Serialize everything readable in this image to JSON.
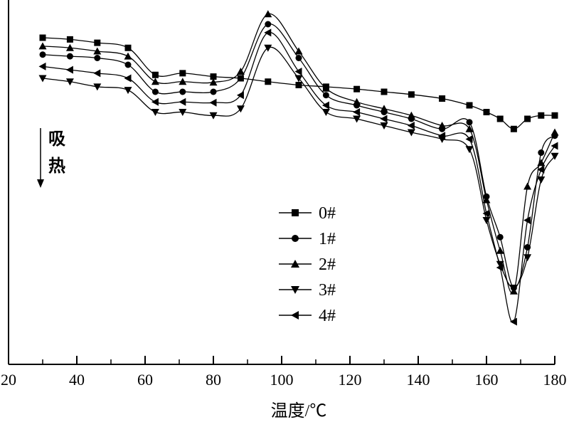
{
  "chart_data": {
    "type": "line",
    "title": "",
    "xlabel": "温度/℃",
    "ylabel": "",
    "annotation": [
      "吸",
      "热"
    ],
    "xlim": [
      20,
      180
    ],
    "x_ticks": [
      20,
      40,
      60,
      80,
      100,
      120,
      140,
      160,
      180
    ],
    "ylim": [
      -1.0,
      0.0
    ],
    "y_axis_ticks": false,
    "grid": false,
    "legend_position": "center",
    "series": [
      {
        "name": "0#",
        "marker": "square",
        "points": [
          [
            30,
            -0.08
          ],
          [
            38,
            -0.085
          ],
          [
            46,
            -0.095
          ],
          [
            55,
            -0.11
          ],
          [
            63,
            -0.19
          ],
          [
            71,
            -0.185
          ],
          [
            80,
            -0.195
          ],
          [
            88,
            -0.2
          ],
          [
            96,
            -0.21
          ],
          [
            105,
            -0.22
          ],
          [
            113,
            -0.225
          ],
          [
            122,
            -0.232
          ],
          [
            130,
            -0.24
          ],
          [
            138,
            -0.248
          ],
          [
            147,
            -0.26
          ],
          [
            155,
            -0.28
          ],
          [
            160,
            -0.3
          ],
          [
            164,
            -0.32
          ],
          [
            168,
            -0.35
          ],
          [
            172,
            -0.32
          ],
          [
            176,
            -0.31
          ],
          [
            180,
            -0.31
          ]
        ]
      },
      {
        "name": "1#",
        "marker": "circle",
        "points": [
          [
            30,
            -0.13
          ],
          [
            38,
            -0.135
          ],
          [
            46,
            -0.14
          ],
          [
            55,
            -0.16
          ],
          [
            63,
            -0.24
          ],
          [
            71,
            -0.24
          ],
          [
            80,
            -0.24
          ],
          [
            88,
            -0.2
          ],
          [
            96,
            -0.04
          ],
          [
            105,
            -0.14
          ],
          [
            113,
            -0.25
          ],
          [
            122,
            -0.28
          ],
          [
            130,
            -0.3
          ],
          [
            138,
            -0.32
          ],
          [
            147,
            -0.35
          ],
          [
            155,
            -0.33
          ],
          [
            160,
            -0.55
          ],
          [
            164,
            -0.67
          ],
          [
            168,
            -0.82
          ],
          [
            172,
            -0.7
          ],
          [
            176,
            -0.42
          ],
          [
            180,
            -0.37
          ]
        ]
      },
      {
        "name": "2#",
        "marker": "triangle-up",
        "points": [
          [
            30,
            -0.105
          ],
          [
            38,
            -0.11
          ],
          [
            46,
            -0.12
          ],
          [
            55,
            -0.135
          ],
          [
            63,
            -0.21
          ],
          [
            71,
            -0.21
          ],
          [
            80,
            -0.212
          ],
          [
            88,
            -0.18
          ],
          [
            96,
            -0.01
          ],
          [
            105,
            -0.12
          ],
          [
            113,
            -0.23
          ],
          [
            122,
            -0.27
          ],
          [
            130,
            -0.29
          ],
          [
            138,
            -0.31
          ],
          [
            147,
            -0.34
          ],
          [
            155,
            -0.35
          ],
          [
            160,
            -0.56
          ],
          [
            164,
            -0.71
          ],
          [
            168,
            -0.83
          ],
          [
            172,
            -0.52
          ],
          [
            176,
            -0.45
          ],
          [
            180,
            -0.36
          ]
        ]
      },
      {
        "name": "3#",
        "marker": "triangle-down",
        "points": [
          [
            30,
            -0.2
          ],
          [
            38,
            -0.21
          ],
          [
            46,
            -0.225
          ],
          [
            55,
            -0.235
          ],
          [
            63,
            -0.3
          ],
          [
            71,
            -0.3
          ],
          [
            80,
            -0.31
          ],
          [
            88,
            -0.29
          ],
          [
            96,
            -0.11
          ],
          [
            105,
            -0.2
          ],
          [
            113,
            -0.3
          ],
          [
            122,
            -0.32
          ],
          [
            130,
            -0.34
          ],
          [
            138,
            -0.36
          ],
          [
            147,
            -0.38
          ],
          [
            155,
            -0.41
          ],
          [
            160,
            -0.62
          ],
          [
            164,
            -0.75
          ],
          [
            168,
            -0.82
          ],
          [
            172,
            -0.73
          ],
          [
            176,
            -0.5
          ],
          [
            180,
            -0.43
          ]
        ]
      },
      {
        "name": "4#",
        "marker": "triangle-left",
        "points": [
          [
            30,
            -0.165
          ],
          [
            38,
            -0.175
          ],
          [
            46,
            -0.185
          ],
          [
            55,
            -0.2
          ],
          [
            63,
            -0.27
          ],
          [
            71,
            -0.27
          ],
          [
            80,
            -0.272
          ],
          [
            88,
            -0.25
          ],
          [
            96,
            -0.065
          ],
          [
            105,
            -0.18
          ],
          [
            113,
            -0.28
          ],
          [
            122,
            -0.3
          ],
          [
            130,
            -0.32
          ],
          [
            138,
            -0.34
          ],
          [
            147,
            -0.37
          ],
          [
            155,
            -0.38
          ],
          [
            160,
            -0.6
          ],
          [
            164,
            -0.76
          ],
          [
            168,
            -0.92
          ],
          [
            172,
            -0.62
          ],
          [
            176,
            -0.47
          ],
          [
            180,
            -0.4
          ]
        ]
      }
    ]
  }
}
